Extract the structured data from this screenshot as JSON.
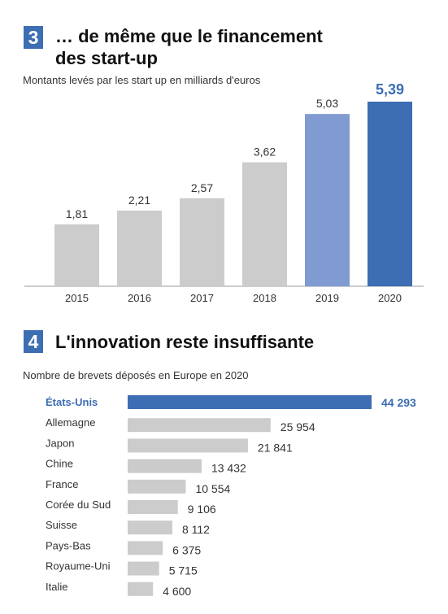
{
  "section3": {
    "number": "3",
    "title_line1": "… de même que le financement",
    "title_line2": "des start-up",
    "subtitle": "Montants levés par les start up en milliards d'euros"
  },
  "section4": {
    "number": "4",
    "title": "L'innovation reste insuffisante",
    "subtitle": "Nombre de brevets déposés en Europe en 2020"
  },
  "chart_data": [
    {
      "type": "bar",
      "title": "… de même que le financement des start-up",
      "subtitle": "Montants levés par les start up en milliards d'euros",
      "categories": [
        "2015",
        "2016",
        "2017",
        "2018",
        "2019",
        "2020"
      ],
      "values": [
        1.81,
        2.21,
        2.57,
        3.62,
        5.03,
        5.39
      ],
      "value_labels": [
        "1,81",
        "2,21",
        "2,57",
        "3,62",
        "5,03",
        "5,39"
      ],
      "colors": [
        "#cccccc",
        "#cccccc",
        "#cccccc",
        "#cccccc",
        "#7f9bd1",
        "#3d6db3"
      ],
      "ylim": [
        0,
        5.39
      ]
    },
    {
      "type": "bar",
      "orientation": "horizontal",
      "title": "L'innovation reste insuffisante",
      "subtitle": "Nombre de brevets déposés en Europe en 2020",
      "categories": [
        "États-Unis",
        "Allemagne",
        "Japon",
        "Chine",
        "France",
        "Corée du Sud",
        "Suisse",
        "Pays-Bas",
        "Royaume-Uni",
        "Italie"
      ],
      "values": [
        44293,
        25954,
        21841,
        13432,
        10554,
        9106,
        8112,
        6375,
        5715,
        4600
      ],
      "value_labels": [
        "44 293",
        "25 954",
        "21 841",
        "13 432",
        "10 554",
        "9 106",
        "8 112",
        "6 375",
        "5 715",
        "4 600"
      ],
      "highlight": "États-Unis",
      "highlight_color": "#3d6db3",
      "bar_color": "#cccccc",
      "xlim": [
        0,
        44293
      ]
    }
  ]
}
